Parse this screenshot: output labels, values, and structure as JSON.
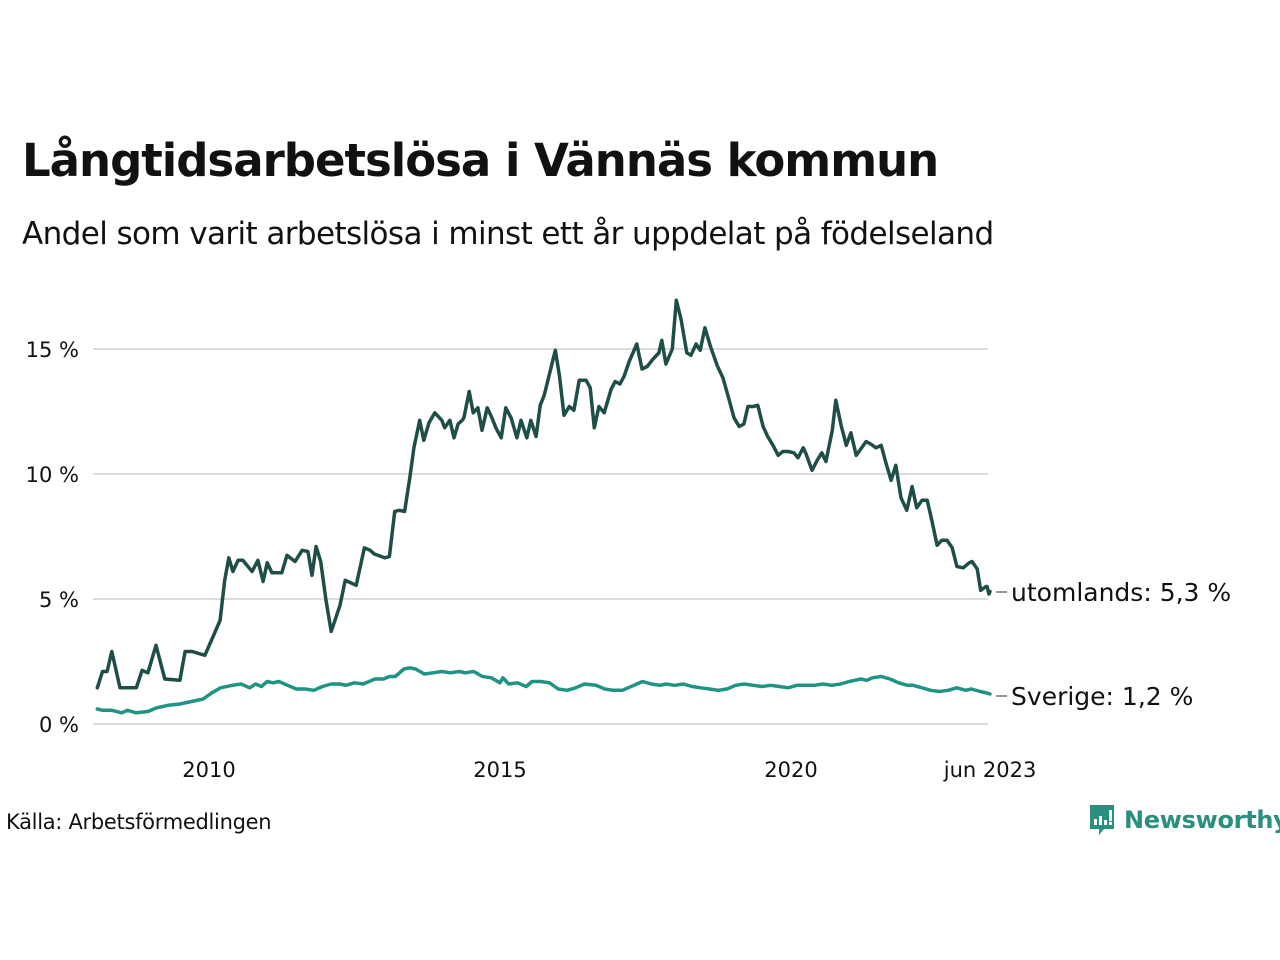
{
  "title": "Långtidsarbetslösa i Vännäs kommun",
  "subtitle": "Andel som varit arbetslösa i minst ett år uppdelat på födelseland",
  "source": "Källa: Arbetsförmedlingen",
  "logo": {
    "name": "Newsworthy",
    "color": "#2a8f7f"
  },
  "chart_data": {
    "type": "line",
    "title": "Långtidsarbetslösa i Vännäs kommun",
    "subtitle": "Andel som varit arbetslösa i minst ett år uppdelat på födelseland",
    "xlabel": "",
    "ylabel": "",
    "x_unit": "year (decimal)",
    "xlim": [
      2008.08,
      2023.42
    ],
    "ylim": [
      0,
      17.5
    ],
    "grid": true,
    "yticks": [
      {
        "value": 0,
        "label": "0 %"
      },
      {
        "value": 5,
        "label": "5 %"
      },
      {
        "value": 10,
        "label": "10 %"
      },
      {
        "value": 15,
        "label": "15 %"
      }
    ],
    "xticks": [
      {
        "value": 2010,
        "label": "2010"
      },
      {
        "value": 2015,
        "label": "2015"
      },
      {
        "value": 2020,
        "label": "2020"
      },
      {
        "value": 2023.42,
        "label": "jun 2023"
      }
    ],
    "series": [
      {
        "name": "utomlands",
        "end_label": "utomlands: 5,3 %",
        "color": "#1f4e48",
        "points": [
          [
            2008.08,
            1.45
          ],
          [
            2008.17,
            2.1
          ],
          [
            2008.25,
            2.1
          ],
          [
            2008.33,
            2.9
          ],
          [
            2008.47,
            1.45
          ],
          [
            2008.61,
            1.45
          ],
          [
            2008.75,
            1.45
          ],
          [
            2008.85,
            2.15
          ],
          [
            2008.95,
            2.05
          ],
          [
            2009.09,
            3.15
          ],
          [
            2009.24,
            1.8
          ],
          [
            2009.5,
            1.75
          ],
          [
            2009.59,
            2.9
          ],
          [
            2009.71,
            2.9
          ],
          [
            2009.93,
            2.75
          ],
          [
            2010.07,
            3.5
          ],
          [
            2010.19,
            4.15
          ],
          [
            2010.27,
            5.75
          ],
          [
            2010.34,
            6.65
          ],
          [
            2010.41,
            6.1
          ],
          [
            2010.5,
            6.55
          ],
          [
            2010.58,
            6.55
          ],
          [
            2010.74,
            6.1
          ],
          [
            2010.84,
            6.55
          ],
          [
            2010.93,
            5.7
          ],
          [
            2011.0,
            6.45
          ],
          [
            2011.08,
            6.05
          ],
          [
            2011.25,
            6.05
          ],
          [
            2011.34,
            6.75
          ],
          [
            2011.48,
            6.5
          ],
          [
            2011.6,
            6.95
          ],
          [
            2011.7,
            6.9
          ],
          [
            2011.77,
            5.95
          ],
          [
            2011.84,
            7.1
          ],
          [
            2011.92,
            6.5
          ],
          [
            2012.01,
            4.95
          ],
          [
            2012.1,
            3.7
          ],
          [
            2012.25,
            4.75
          ],
          [
            2012.34,
            5.75
          ],
          [
            2012.53,
            5.55
          ],
          [
            2012.67,
            7.05
          ],
          [
            2012.77,
            6.95
          ],
          [
            2012.84,
            6.8
          ],
          [
            2013.02,
            6.65
          ],
          [
            2013.1,
            6.7
          ],
          [
            2013.19,
            8.5
          ],
          [
            2013.27,
            8.55
          ],
          [
            2013.36,
            8.5
          ],
          [
            2013.45,
            9.85
          ],
          [
            2013.52,
            11.05
          ],
          [
            2013.62,
            12.15
          ],
          [
            2013.69,
            11.35
          ],
          [
            2013.78,
            12.05
          ],
          [
            2013.88,
            12.45
          ],
          [
            2014.0,
            12.15
          ],
          [
            2014.05,
            11.85
          ],
          [
            2014.14,
            12.15
          ],
          [
            2014.21,
            11.45
          ],
          [
            2014.28,
            12.0
          ],
          [
            2014.35,
            12.15
          ],
          [
            2014.38,
            12.25
          ],
          [
            2014.47,
            13.3
          ],
          [
            2014.54,
            12.45
          ],
          [
            2014.62,
            12.65
          ],
          [
            2014.69,
            11.75
          ],
          [
            2014.78,
            12.65
          ],
          [
            2014.86,
            12.25
          ],
          [
            2014.93,
            11.85
          ],
          [
            2015.02,
            11.45
          ],
          [
            2015.1,
            12.65
          ],
          [
            2015.19,
            12.25
          ],
          [
            2015.29,
            11.45
          ],
          [
            2015.36,
            12.15
          ],
          [
            2015.46,
            11.45
          ],
          [
            2015.53,
            12.15
          ],
          [
            2015.62,
            11.5
          ],
          [
            2015.69,
            12.75
          ],
          [
            2015.76,
            13.15
          ],
          [
            2015.95,
            14.95
          ],
          [
            2016.02,
            13.95
          ],
          [
            2016.1,
            12.35
          ],
          [
            2016.19,
            12.7
          ],
          [
            2016.27,
            12.55
          ],
          [
            2016.36,
            13.75
          ],
          [
            2016.48,
            13.75
          ],
          [
            2016.55,
            13.45
          ],
          [
            2016.62,
            11.85
          ],
          [
            2016.7,
            12.7
          ],
          [
            2016.79,
            12.45
          ],
          [
            2016.91,
            13.4
          ],
          [
            2016.98,
            13.7
          ],
          [
            2017.06,
            13.6
          ],
          [
            2017.13,
            13.9
          ],
          [
            2017.22,
            14.5
          ],
          [
            2017.35,
            15.2
          ],
          [
            2017.44,
            14.2
          ],
          [
            2017.53,
            14.3
          ],
          [
            2017.63,
            14.6
          ],
          [
            2017.73,
            14.85
          ],
          [
            2017.78,
            15.35
          ],
          [
            2017.85,
            14.4
          ],
          [
            2017.96,
            15.0
          ],
          [
            2018.03,
            16.95
          ],
          [
            2018.11,
            16.2
          ],
          [
            2018.21,
            14.85
          ],
          [
            2018.28,
            14.75
          ],
          [
            2018.37,
            15.2
          ],
          [
            2018.44,
            14.95
          ],
          [
            2018.52,
            15.85
          ],
          [
            2018.61,
            15.15
          ],
          [
            2018.73,
            14.35
          ],
          [
            2018.83,
            13.85
          ],
          [
            2018.94,
            12.95
          ],
          [
            2019.02,
            12.25
          ],
          [
            2019.11,
            11.9
          ],
          [
            2019.19,
            12.0
          ],
          [
            2019.26,
            12.7
          ],
          [
            2019.35,
            12.7
          ],
          [
            2019.43,
            12.75
          ],
          [
            2019.52,
            11.9
          ],
          [
            2019.6,
            11.5
          ],
          [
            2019.69,
            11.15
          ],
          [
            2019.78,
            10.75
          ],
          [
            2019.86,
            10.9
          ],
          [
            2019.95,
            10.9
          ],
          [
            2020.05,
            10.85
          ],
          [
            2020.12,
            10.65
          ],
          [
            2020.21,
            11.05
          ],
          [
            2020.26,
            10.8
          ],
          [
            2020.36,
            10.15
          ],
          [
            2020.45,
            10.55
          ],
          [
            2020.53,
            10.85
          ],
          [
            2020.6,
            10.5
          ],
          [
            2020.71,
            11.75
          ],
          [
            2020.77,
            12.95
          ],
          [
            2020.86,
            11.95
          ],
          [
            2020.95,
            11.15
          ],
          [
            2021.03,
            11.65
          ],
          [
            2021.12,
            10.75
          ],
          [
            2021.2,
            11.0
          ],
          [
            2021.29,
            11.3
          ],
          [
            2021.37,
            11.2
          ],
          [
            2021.46,
            11.05
          ],
          [
            2021.55,
            11.15
          ],
          [
            2021.63,
            10.45
          ],
          [
            2021.72,
            9.75
          ],
          [
            2021.8,
            10.35
          ],
          [
            2021.89,
            9.05
          ],
          [
            2021.99,
            8.55
          ],
          [
            2022.08,
            9.5
          ],
          [
            2022.16,
            8.65
          ],
          [
            2022.25,
            8.95
          ],
          [
            2022.34,
            8.95
          ],
          [
            2022.42,
            8.15
          ],
          [
            2022.51,
            7.15
          ],
          [
            2022.59,
            7.35
          ],
          [
            2022.68,
            7.35
          ],
          [
            2022.77,
            7.05
          ],
          [
            2022.85,
            6.3
          ],
          [
            2022.96,
            6.25
          ],
          [
            2023.06,
            6.45
          ],
          [
            2023.11,
            6.5
          ],
          [
            2023.2,
            6.2
          ],
          [
            2023.26,
            5.35
          ],
          [
            2023.35,
            5.5
          ],
          [
            2023.37,
            5.5
          ],
          [
            2023.4,
            5.2
          ],
          [
            2023.42,
            5.3
          ]
        ]
      },
      {
        "name": "Sverige",
        "end_label": "Sverige: 1,2 %",
        "color": "#1f9484",
        "points": [
          [
            2008.08,
            0.6
          ],
          [
            2008.17,
            0.55
          ],
          [
            2008.33,
            0.55
          ],
          [
            2008.5,
            0.45
          ],
          [
            2008.6,
            0.55
          ],
          [
            2008.75,
            0.45
          ],
          [
            2008.95,
            0.5
          ],
          [
            2009.1,
            0.65
          ],
          [
            2009.3,
            0.75
          ],
          [
            2009.5,
            0.8
          ],
          [
            2009.7,
            0.9
          ],
          [
            2009.9,
            1.0
          ],
          [
            2010.05,
            1.25
          ],
          [
            2010.2,
            1.45
          ],
          [
            2010.4,
            1.55
          ],
          [
            2010.55,
            1.6
          ],
          [
            2010.7,
            1.45
          ],
          [
            2010.8,
            1.6
          ],
          [
            2010.9,
            1.5
          ],
          [
            2011.0,
            1.7
          ],
          [
            2011.1,
            1.65
          ],
          [
            2011.2,
            1.7
          ],
          [
            2011.35,
            1.55
          ],
          [
            2011.5,
            1.4
          ],
          [
            2011.65,
            1.4
          ],
          [
            2011.8,
            1.35
          ],
          [
            2011.95,
            1.5
          ],
          [
            2012.1,
            1.6
          ],
          [
            2012.25,
            1.6
          ],
          [
            2012.35,
            1.55
          ],
          [
            2012.5,
            1.65
          ],
          [
            2012.65,
            1.6
          ],
          [
            2012.75,
            1.7
          ],
          [
            2012.85,
            1.8
          ],
          [
            2013.0,
            1.8
          ],
          [
            2013.1,
            1.9
          ],
          [
            2013.2,
            1.9
          ],
          [
            2013.35,
            2.2
          ],
          [
            2013.45,
            2.25
          ],
          [
            2013.55,
            2.2
          ],
          [
            2013.7,
            2.0
          ],
          [
            2013.85,
            2.05
          ],
          [
            2014.0,
            2.1
          ],
          [
            2014.15,
            2.05
          ],
          [
            2014.3,
            2.1
          ],
          [
            2014.4,
            2.05
          ],
          [
            2014.55,
            2.1
          ],
          [
            2014.7,
            1.9
          ],
          [
            2014.85,
            1.85
          ],
          [
            2015.0,
            1.65
          ],
          [
            2015.05,
            1.85
          ],
          [
            2015.15,
            1.6
          ],
          [
            2015.3,
            1.65
          ],
          [
            2015.45,
            1.5
          ],
          [
            2015.55,
            1.7
          ],
          [
            2015.7,
            1.7
          ],
          [
            2015.85,
            1.65
          ],
          [
            2016.0,
            1.4
          ],
          [
            2016.15,
            1.35
          ],
          [
            2016.3,
            1.45
          ],
          [
            2016.45,
            1.6
          ],
          [
            2016.65,
            1.55
          ],
          [
            2016.8,
            1.4
          ],
          [
            2016.95,
            1.35
          ],
          [
            2017.1,
            1.35
          ],
          [
            2017.3,
            1.55
          ],
          [
            2017.45,
            1.7
          ],
          [
            2017.6,
            1.6
          ],
          [
            2017.75,
            1.55
          ],
          [
            2017.85,
            1.6
          ],
          [
            2018.0,
            1.55
          ],
          [
            2018.15,
            1.6
          ],
          [
            2018.3,
            1.5
          ],
          [
            2018.45,
            1.45
          ],
          [
            2018.6,
            1.4
          ],
          [
            2018.75,
            1.35
          ],
          [
            2018.9,
            1.4
          ],
          [
            2019.05,
            1.55
          ],
          [
            2019.2,
            1.6
          ],
          [
            2019.35,
            1.55
          ],
          [
            2019.5,
            1.5
          ],
          [
            2019.65,
            1.55
          ],
          [
            2019.8,
            1.5
          ],
          [
            2019.95,
            1.45
          ],
          [
            2020.1,
            1.55
          ],
          [
            2020.25,
            1.55
          ],
          [
            2020.4,
            1.55
          ],
          [
            2020.55,
            1.6
          ],
          [
            2020.7,
            1.55
          ],
          [
            2020.85,
            1.6
          ],
          [
            2021.0,
            1.7
          ],
          [
            2021.1,
            1.75
          ],
          [
            2021.2,
            1.8
          ],
          [
            2021.3,
            1.75
          ],
          [
            2021.4,
            1.85
          ],
          [
            2021.55,
            1.9
          ],
          [
            2021.7,
            1.8
          ],
          [
            2021.85,
            1.65
          ],
          [
            2022.0,
            1.55
          ],
          [
            2022.1,
            1.55
          ],
          [
            2022.25,
            1.45
          ],
          [
            2022.4,
            1.35
          ],
          [
            2022.55,
            1.3
          ],
          [
            2022.7,
            1.35
          ],
          [
            2022.85,
            1.45
          ],
          [
            2023.0,
            1.35
          ],
          [
            2023.1,
            1.4
          ],
          [
            2023.25,
            1.3
          ],
          [
            2023.35,
            1.25
          ],
          [
            2023.42,
            1.2
          ]
        ]
      }
    ]
  }
}
